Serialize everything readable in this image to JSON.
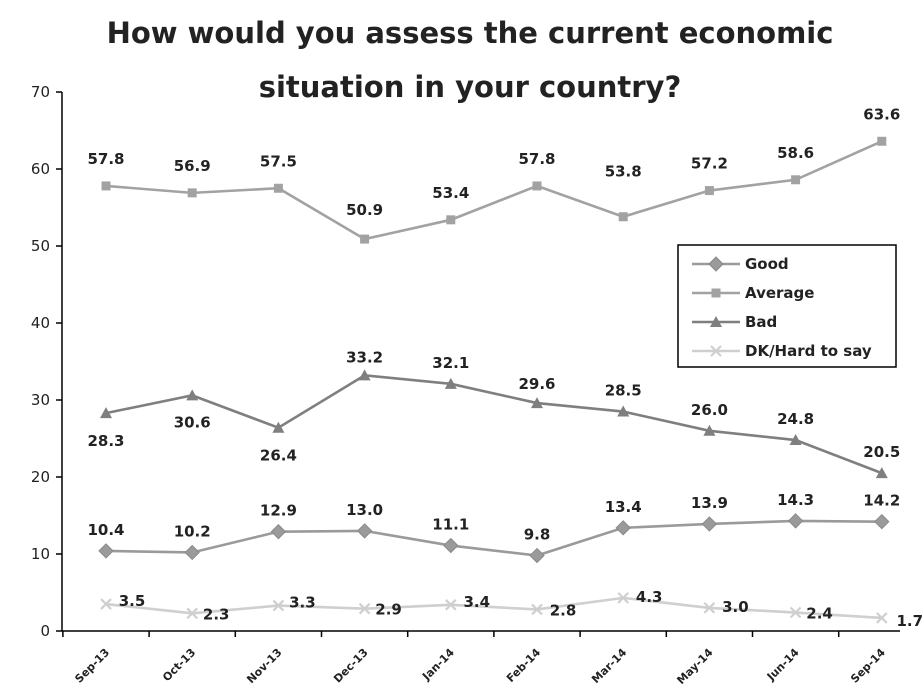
{
  "chart_data": {
    "type": "line",
    "title_line1": "How would you assess the current economic",
    "title_line2": "situation in your country?",
    "categories": [
      "Sep-13",
      "Oct-13",
      "Nov-13",
      "Dec-13",
      "Jan-14",
      "Feb-14",
      "Mar-14",
      "May-14",
      "Jun-14",
      "Sep-14"
    ],
    "ylim": [
      0,
      70
    ],
    "yticks": [
      0,
      10,
      20,
      30,
      40,
      50,
      60,
      70
    ],
    "grid": false,
    "legend_position": "right",
    "series": [
      {
        "name": "Good",
        "marker": "diamond",
        "color": "#9a9a9a",
        "values": [
          10.4,
          10.2,
          12.9,
          13.0,
          11.1,
          9.8,
          13.4,
          13.9,
          14.3,
          14.2
        ],
        "labels": [
          "10.4",
          "10.2",
          "12.9",
          "13.0",
          "11.1",
          "9.8",
          "13.4",
          "13.9",
          "14.3",
          "14.2"
        ]
      },
      {
        "name": "Average",
        "marker": "square",
        "color": "#a2a2a2",
        "values": [
          57.8,
          56.9,
          57.5,
          50.9,
          53.4,
          57.8,
          53.8,
          57.2,
          58.6,
          63.6
        ],
        "labels": [
          "57.8",
          "56.9",
          "57.5",
          "50.9",
          "53.4",
          "57.8",
          "53.8",
          "57.2",
          "58.6",
          "63.6"
        ]
      },
      {
        "name": "Bad",
        "marker": "triangle",
        "color": "#7f7f7f",
        "values": [
          28.3,
          30.6,
          26.4,
          33.2,
          32.1,
          29.6,
          28.5,
          26.0,
          24.8,
          20.5
        ],
        "labels": [
          "28.3",
          "30.6",
          "26.4",
          "33.2",
          "32.1",
          "29.6",
          "28.5",
          "26.0",
          "24.8",
          "20.5"
        ]
      },
      {
        "name": "DK/Hard to say",
        "marker": "cross",
        "color": "#cfcfcf",
        "values": [
          3.5,
          2.3,
          3.3,
          2.9,
          3.4,
          2.8,
          4.3,
          3.0,
          2.4,
          1.7
        ],
        "labels": [
          "3.5",
          "2.3",
          "3.3",
          "2.9",
          "3.4",
          "2.8",
          "4.3",
          "3.0",
          "2.4",
          "1.7"
        ]
      }
    ]
  }
}
